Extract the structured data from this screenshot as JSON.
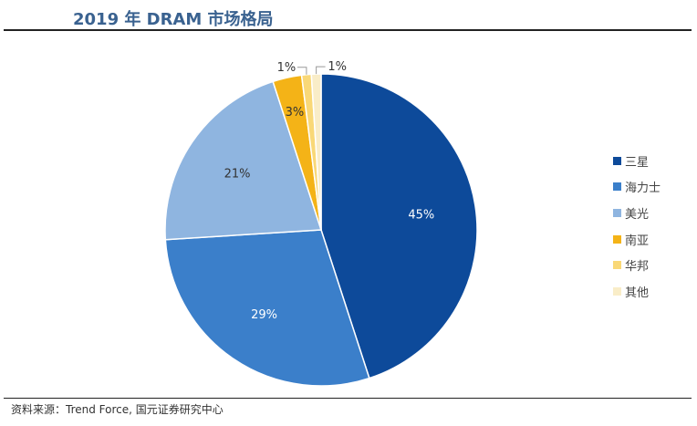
{
  "chart_data": {
    "type": "pie",
    "title": "2019 年 DRAM 市场格局",
    "categories": [
      "三星",
      "海力士",
      "美光",
      "南亚",
      "华邦",
      "其他"
    ],
    "values": [
      45,
      29,
      21,
      3,
      1,
      1
    ],
    "labels": [
      "45%",
      "29%",
      "21%",
      "3%",
      "1%",
      "1%"
    ],
    "colors": [
      "#0d4a9a",
      "#3b7fca",
      "#8fb5e0",
      "#f4b317",
      "#f9d877",
      "#f9edc8"
    ],
    "start": "12 o'clock, clockwise",
    "legend_position": "right"
  },
  "source": "资料来源：Trend Force, 国元证券研究中心"
}
